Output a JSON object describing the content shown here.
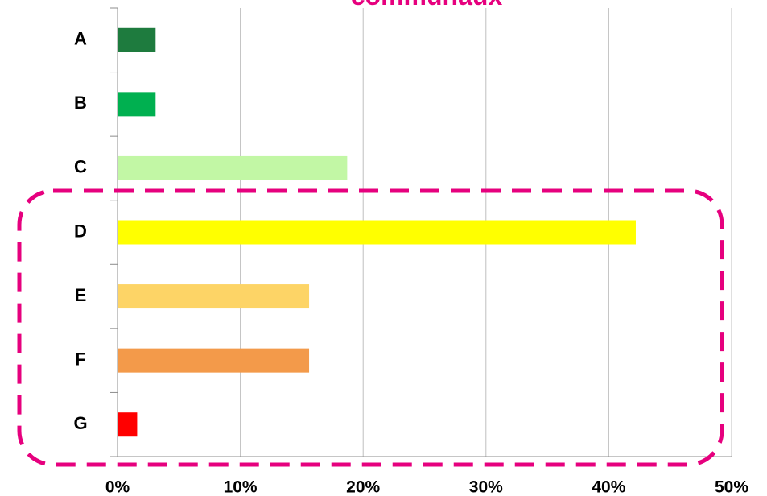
{
  "chart_data": {
    "type": "bar",
    "orientation": "horizontal",
    "title": "communaux",
    "categories": [
      "A",
      "B",
      "C",
      "D",
      "E",
      "F",
      "G"
    ],
    "values": [
      3.1,
      3.1,
      18.7,
      42.2,
      15.6,
      15.6,
      1.6
    ],
    "colors": [
      "#1e7b3e",
      "#00b050",
      "#c2f7a5",
      "#ffff00",
      "#fdd466",
      "#f39a4a",
      "#ff0000"
    ],
    "xlim": [
      0,
      50
    ],
    "xticks": [
      {
        "value": 0,
        "label": "0%"
      },
      {
        "value": 10,
        "label": "10%"
      },
      {
        "value": 20,
        "label": "20%"
      },
      {
        "value": 30,
        "label": "30%"
      },
      {
        "value": 40,
        "label": "40%"
      },
      {
        "value": 50,
        "label": "50%"
      }
    ],
    "grid": true
  }
}
